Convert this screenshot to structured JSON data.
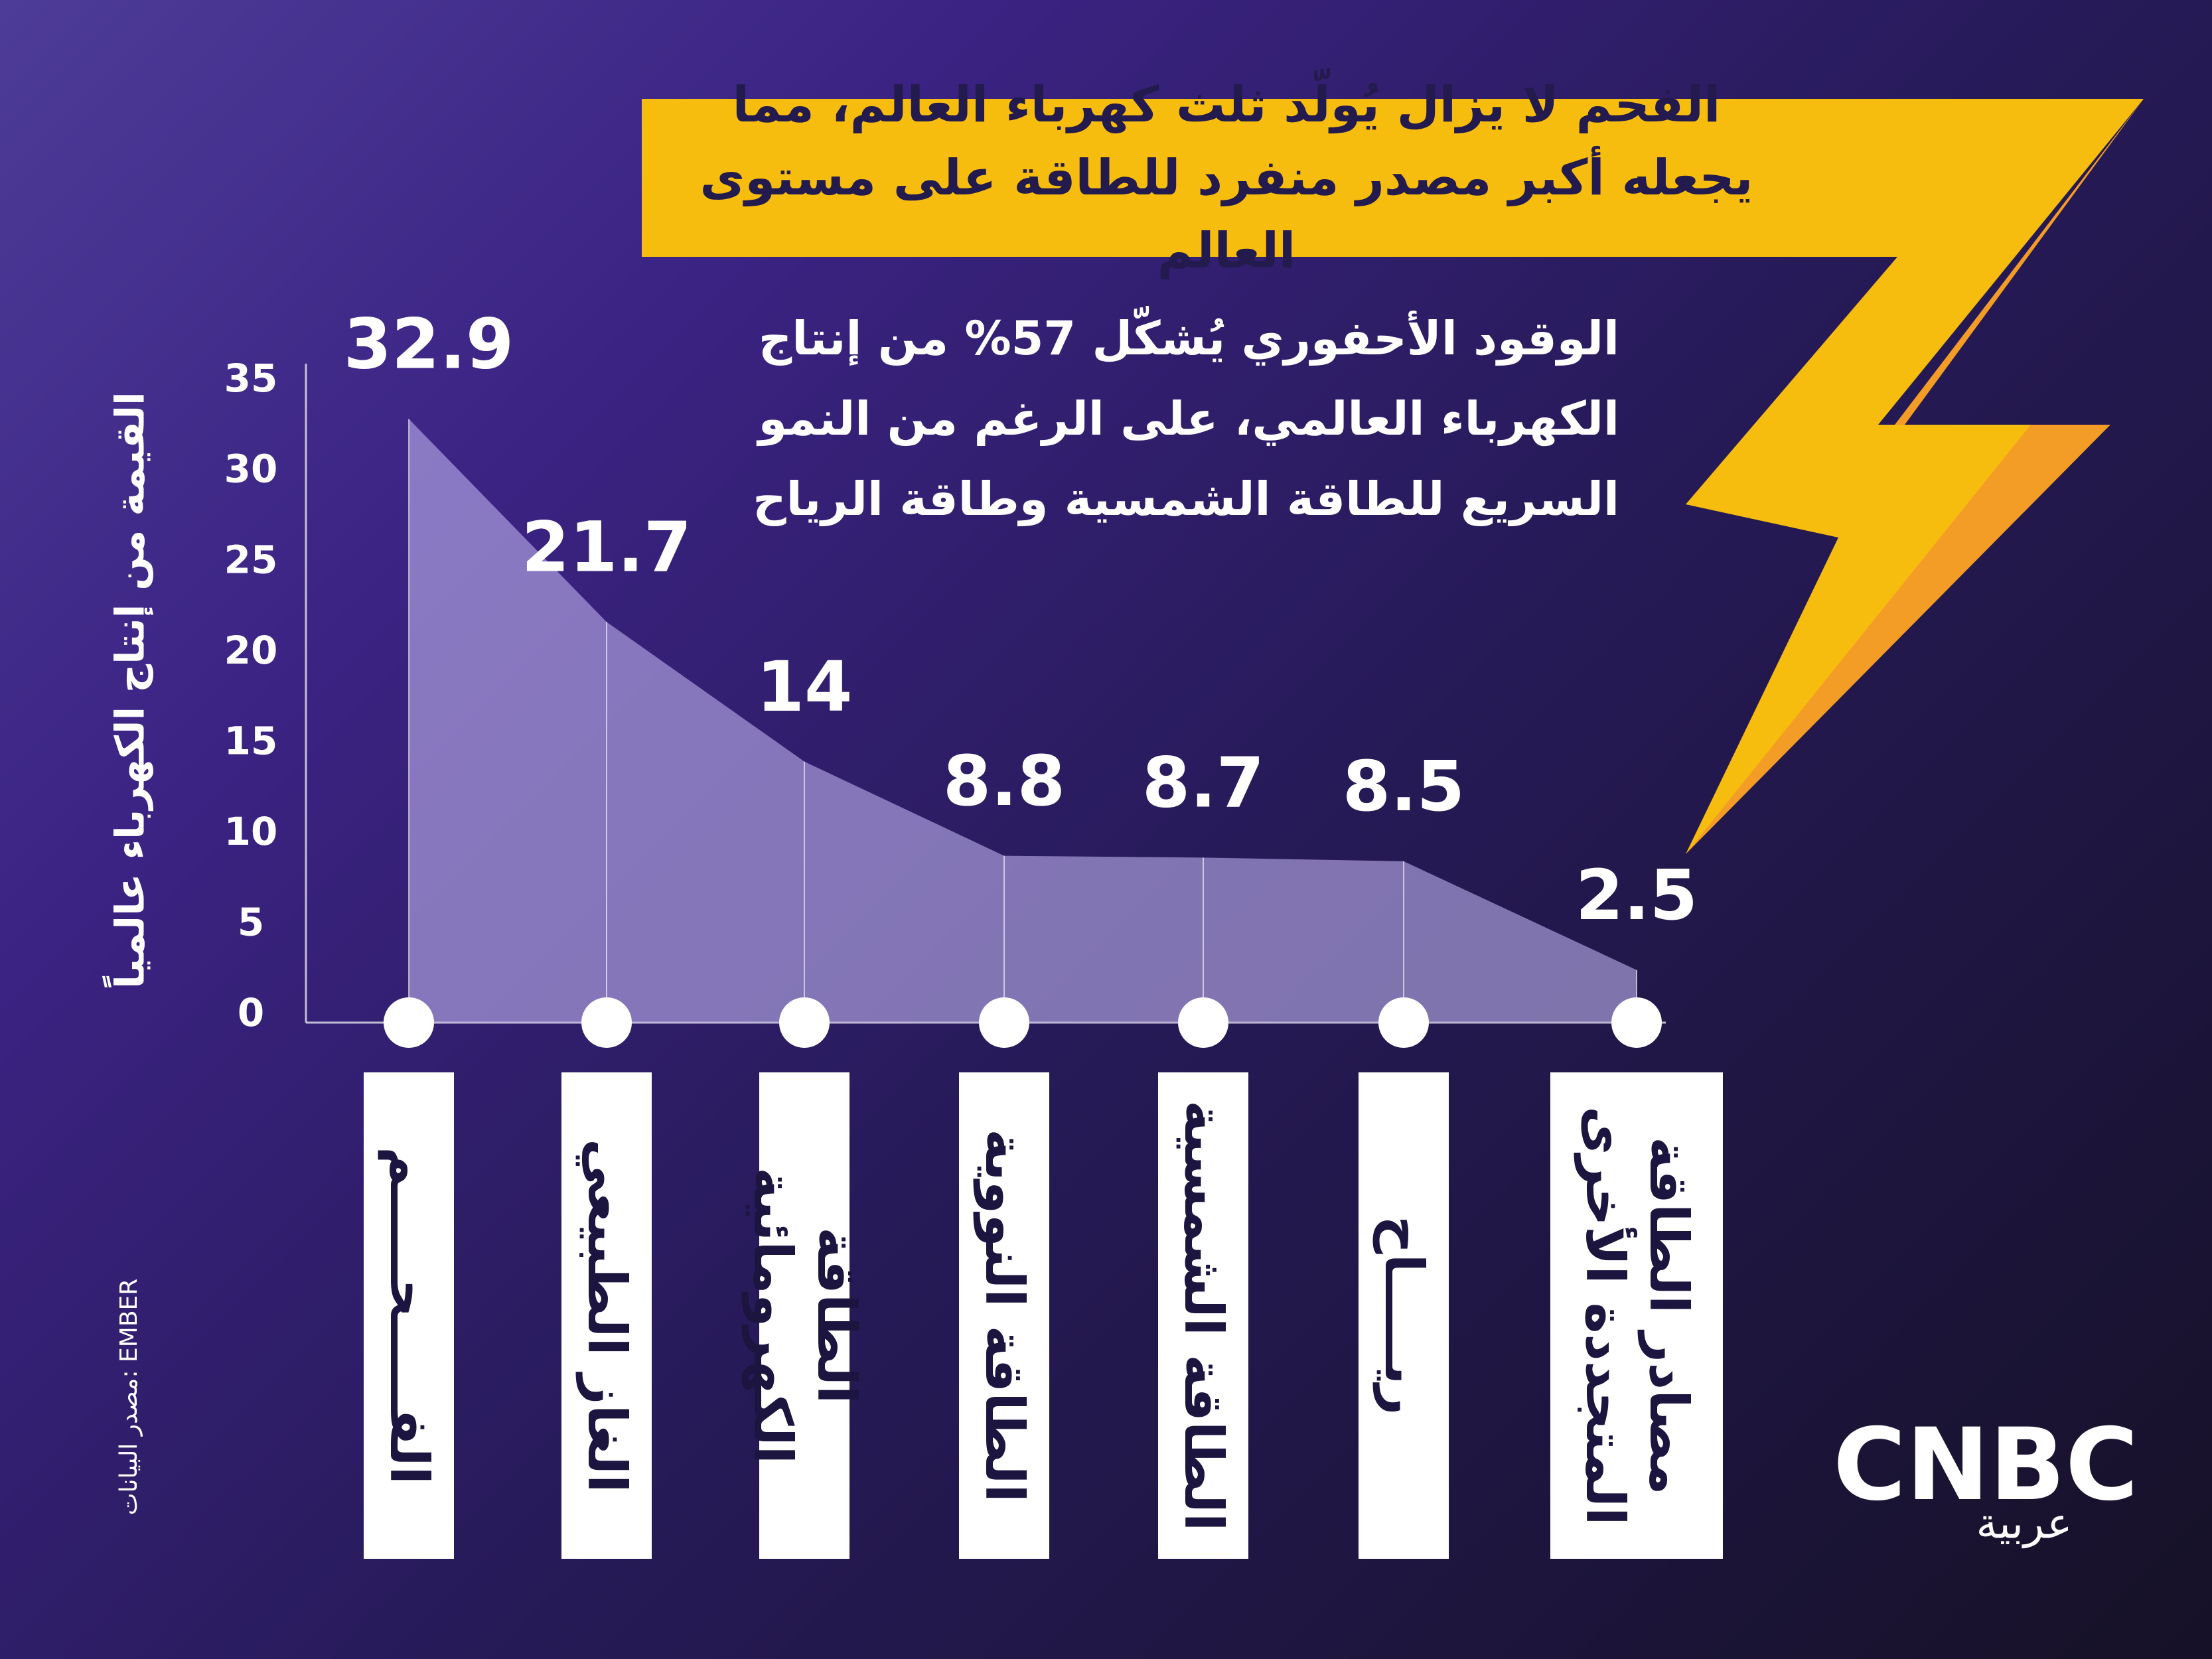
{
  "chart_data": {
    "type": "area",
    "title": "الفحم لا يزال يُولّد ثلث كهرباء العالم، مما يجعله أكبر مصدر منفرد للطاقة على مستوى العالم",
    "subtitle": "الوقود الأحفوري يُشكّل 57% من إنتاج الكهرباء العالمي، على الرغم من النمو السريع للطاقة الشمسية وطاقة الرياح",
    "y_label": "القيمة من إنتاج الكهرباء عالمياً",
    "source": "مصدر البيانات: EMBER",
    "categories": [
      "الفـــــحـــــم",
      "الغاز الطبيعي",
      "الطاقة الكهرومائية",
      "الطاقة النووية",
      "الطاقة الشمسية",
      "ريـــــاح",
      "مصادر الطاقة المتجددة الأخرى"
    ],
    "values": [
      32.9,
      21.7,
      14,
      8.8,
      8.7,
      8.5,
      2.5
    ],
    "color": "#b9acea",
    "ylim": [
      0,
      35
    ],
    "yticks": [
      0,
      5,
      10,
      15,
      20,
      25,
      30,
      35
    ]
  },
  "logo": {
    "brand": "CNBC",
    "edition": "عربية"
  }
}
